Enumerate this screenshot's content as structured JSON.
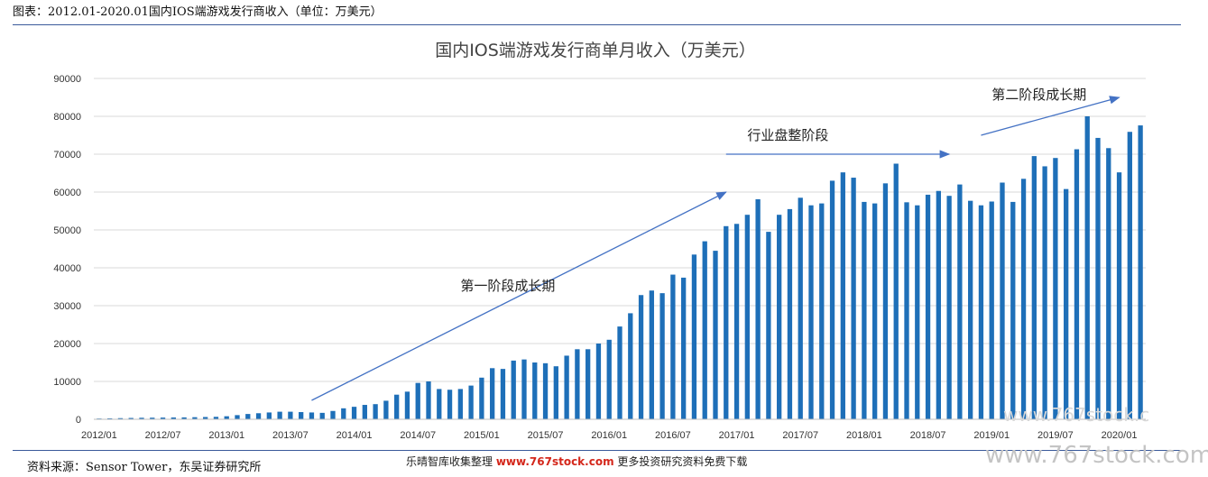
{
  "header": {
    "title": "图表：2012.01-2020.01国内IOS端游戏发行商收入（单位：万美元）"
  },
  "footer": {
    "source": "资料来源：Sensor   Tower，东吴证券研究所",
    "watermark_prefix": "乐晴智库收集整理",
    "watermark_url": "www.767stock.com",
    "watermark_suffix": "更多投资研究资料免费下载",
    "watermark_right": "www.767stock.com",
    "watermark_right_2": "www.767stock.c"
  },
  "colors": {
    "bar": "#1e6fb8",
    "arrow": "#4472c4"
  },
  "chart_data": {
    "type": "bar",
    "title": "国内IOS端游戏发行商单月收入（万美元）",
    "xlabel": "",
    "ylabel": "",
    "ylim": [
      0,
      90000
    ],
    "yticks": [
      0,
      10000,
      20000,
      30000,
      40000,
      50000,
      60000,
      70000,
      80000,
      90000
    ],
    "grid": true,
    "xtick_labels": [
      "2012/01",
      "2012/07",
      "2013/01",
      "2013/07",
      "2014/01",
      "2014/07",
      "2015/01",
      "2015/07",
      "2016/01",
      "2016/07",
      "2017/01",
      "2017/07",
      "2018/01",
      "2018/07",
      "2019/01",
      "2019/07",
      "2020/01"
    ],
    "start_month": "2012/01",
    "values": [
      200,
      250,
      300,
      350,
      400,
      420,
      450,
      480,
      500,
      550,
      600,
      650,
      800,
      1100,
      1400,
      1600,
      1800,
      2000,
      2000,
      1900,
      1800,
      1700,
      2200,
      2900,
      3300,
      3800,
      4000,
      4900,
      6500,
      7300,
      9600,
      10000,
      8000,
      7800,
      8000,
      8900,
      11000,
      13500,
      13300,
      15500,
      15800,
      15000,
      14800,
      14000,
      16800,
      18500,
      18500,
      20000,
      21000,
      24500,
      28000,
      32800,
      34000,
      33300,
      38200,
      37400,
      43500,
      47000,
      44500,
      51000,
      51600,
      54000,
      58100,
      49500,
      54000,
      55500,
      58500,
      56500,
      57000,
      63000,
      65200,
      63800,
      57400,
      57000,
      62300,
      67500,
      57300,
      56500,
      59300,
      60300,
      59000,
      62000,
      57700,
      56500,
      57500,
      62500,
      57400,
      63500,
      69500,
      66800,
      69000,
      60800,
      71300,
      80000,
      74300,
      71600,
      65200,
      75900,
      77600
    ],
    "annotations": [
      {
        "text": "第一阶段成长期",
        "arrow_from": [
          "2013/09",
          5000
        ],
        "arrow_to": [
          "2016/12",
          60000
        ],
        "label_at": [
          "2014/11",
          34000
        ]
      },
      {
        "text": "行业盘整阶段",
        "arrow_from": [
          "2016/12",
          70000
        ],
        "arrow_to": [
          "2018/09",
          70000
        ],
        "label_at": [
          "2017/02",
          73800
        ]
      },
      {
        "text": "第二阶段成长期",
        "arrow_from": [
          "2018/12",
          75000
        ],
        "arrow_to": [
          "2020/01",
          85000
        ],
        "label_at": [
          "2019/01",
          84500
        ]
      }
    ]
  }
}
